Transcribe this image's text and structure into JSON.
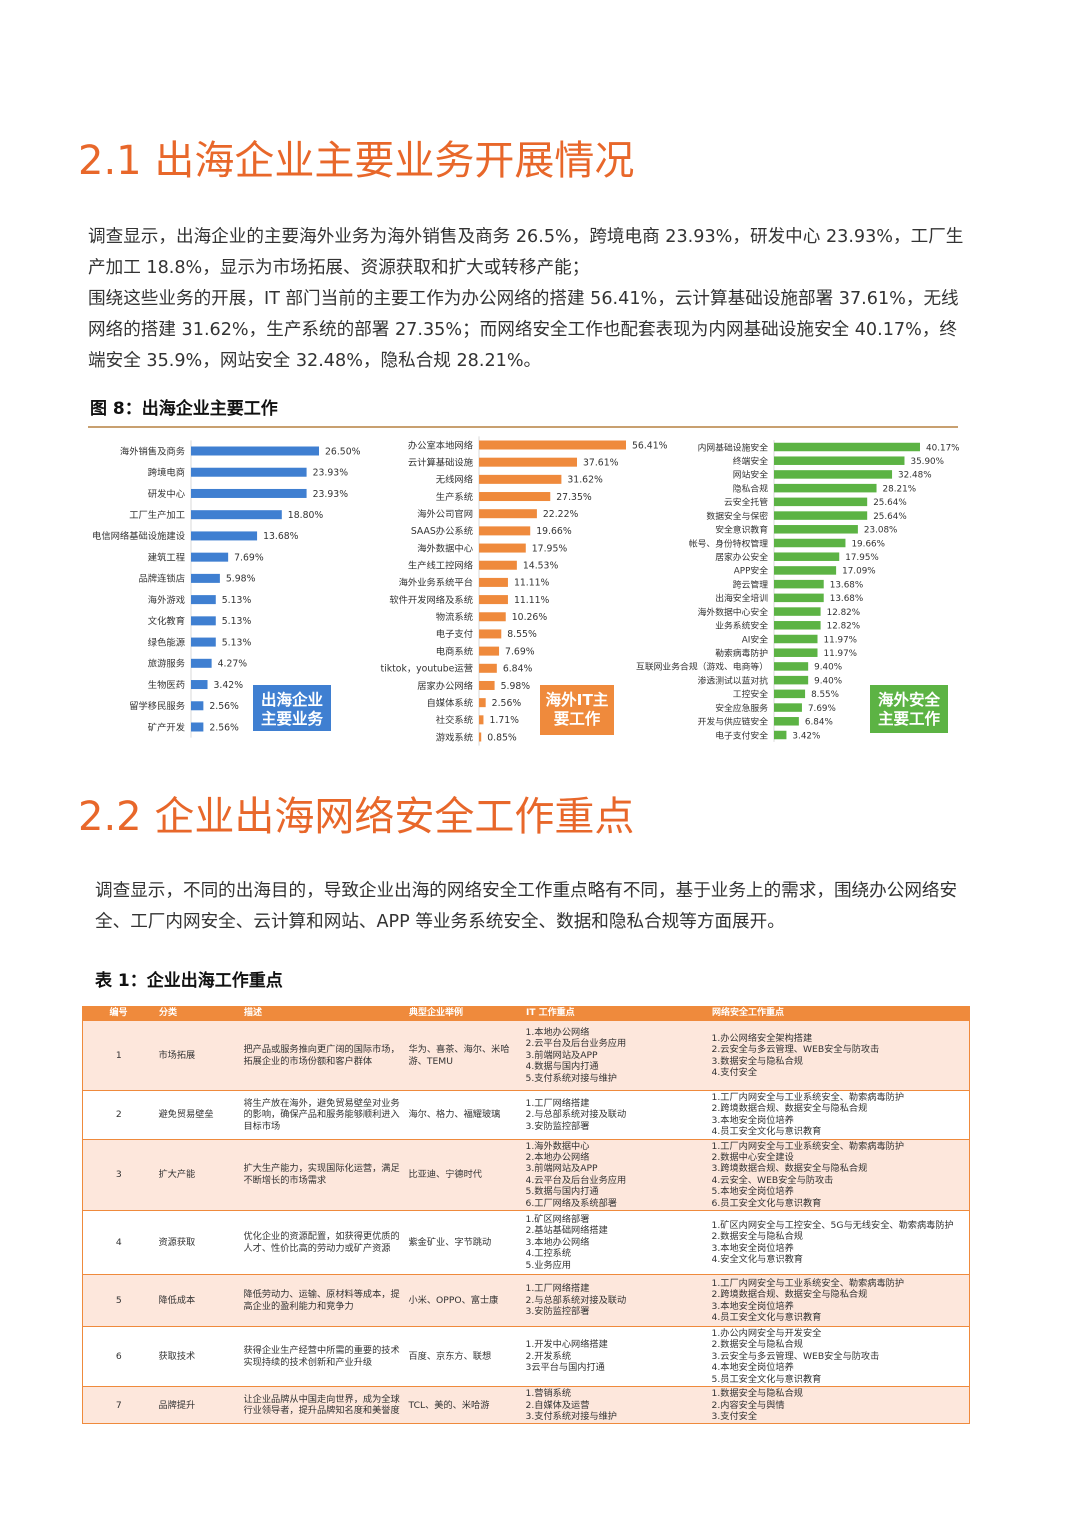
{
  "section1": {
    "heading": "2.1 出海企业主要业务开展情况",
    "paragraphs": [
      "调查显示，出海企业的主要海外业务为海外销售及商务 26.5%，跨境电商 23.93%，研发中心 23.93%，工厂生产加工 18.8%，显示为市场拓展、资源获取和扩大或转移产能；",
      "围绕这些业务的开展，IT 部门当前的主要工作为办公网络的搭建 56.41%，云计算基础设施部署 37.61%，无线网络的搭建 31.62%，生产系统的部署 27.35%；而网络安全工作也配套表现为内网基础设施安全 40.17%，终端安全 35.9%，网站安全 32.48%，隐私合规 28.21%。"
    ],
    "figure_title": "图 8：出海企业主要工作"
  },
  "chart_data": [
    {
      "type": "bar",
      "orientation": "horizontal",
      "badge": "出海企业\n主要业务",
      "color": "#3f7fd1",
      "badge_color": "#3f7fd1",
      "xlim": [
        0,
        30
      ],
      "categories": [
        "海外销售及商务",
        "跨境电商",
        "研发中心",
        "工厂生产加工",
        "电信网络基础设施建设",
        "建筑工程",
        "品牌连锁店",
        "海外游戏",
        "文化教育",
        "绿色能源",
        "旅游服务",
        "生物医药",
        "留学移民服务",
        "矿产开发"
      ],
      "values": [
        26.5,
        23.93,
        23.93,
        18.8,
        13.68,
        7.69,
        5.98,
        5.13,
        5.13,
        5.13,
        4.27,
        3.42,
        2.56,
        2.56
      ],
      "labels": [
        "26.50%",
        "23.93%",
        "23.93%",
        "18.80%",
        "13.68%",
        "7.69%",
        "5.98%",
        "5.13%",
        "5.13%",
        "5.13%",
        "4.27%",
        "3.42%",
        "2.56%",
        "2.56%"
      ]
    },
    {
      "type": "bar",
      "orientation": "horizontal",
      "badge": "海外IT主\n要工作",
      "color": "#ef8a3c",
      "badge_color": "#ef8a3c",
      "xlim": [
        0,
        60
      ],
      "categories": [
        "办公室本地网络",
        "云计算基础设施",
        "无线网络",
        "生产系统",
        "海外公司官网",
        "SAAS办公系统",
        "海外数据中心",
        "生产线工控网络",
        "海外业务系统平台",
        "软件开发网络及系统",
        "物流系统",
        "电子支付",
        "电商系统",
        "tiktok，youtube运营",
        "居家办公网络",
        "自媒体系统",
        "社交系统",
        "游戏系统"
      ],
      "values": [
        56.41,
        37.61,
        31.62,
        27.35,
        22.22,
        19.66,
        17.95,
        14.53,
        11.11,
        11.11,
        10.26,
        8.55,
        7.69,
        6.84,
        5.98,
        2.56,
        1.71,
        0.85
      ],
      "labels": [
        "56.41%",
        "37.61%",
        "31.62%",
        "27.35%",
        "22.22%",
        "19.66%",
        "17.95%",
        "14.53%",
        "11.11%",
        "11.11%",
        "10.26%",
        "8.55%",
        "7.69%",
        "6.84%",
        "5.98%",
        "2.56%",
        "1.71%",
        "0.85%"
      ]
    },
    {
      "type": "bar",
      "orientation": "horizontal",
      "badge": "海外安全\n主要工作",
      "color": "#5cb344",
      "badge_color": "#5cb344",
      "xlim": [
        0,
        45
      ],
      "categories": [
        "内网基础设施安全",
        "终端安全",
        "网站安全",
        "隐私合规",
        "云安全托管",
        "数据安全与保密",
        "安全意识教育",
        "帐号、身份特权管理",
        "居家办公安全",
        "APP安全",
        "跨云管理",
        "出海安全培训",
        "海外数据中心安全",
        "业务系统安全",
        "AI安全",
        "勒索病毒防护",
        "互联网业务合规（游戏、电商等）",
        "渗透测试以蓝对抗",
        "工控安全",
        "安全应急服务",
        "开发与供应链安全",
        "电子支付安全"
      ],
      "values": [
        40.17,
        35.9,
        32.48,
        28.21,
        25.64,
        25.64,
        23.08,
        19.66,
        17.95,
        17.09,
        13.68,
        13.68,
        12.82,
        12.82,
        11.97,
        11.97,
        9.4,
        9.4,
        8.55,
        7.69,
        6.84,
        3.42
      ],
      "labels": [
        "40.17%",
        "35.90%",
        "32.48%",
        "28.21%",
        "25.64%",
        "25.64%",
        "23.08%",
        "19.66%",
        "17.95%",
        "17.09%",
        "13.68%",
        "13.68%",
        "12.82%",
        "12.82%",
        "11.97%",
        "11.97%",
        "9.40%",
        "9.40%",
        "8.55%",
        "7.69%",
        "6.84%",
        "3.42%"
      ]
    }
  ],
  "section2": {
    "heading": "2.2 企业出海网络安全工作重点",
    "paragraph": "调查显示，不同的出海目的，导致企业出海的网络安全工作重点略有不同，基于业务上的需求，围绕办公网络安全、工厂内网安全、云计算和网站、APP 等业务系统安全、数据和隐私合规等方面展开。",
    "table_title": "表 1：企业出海工作重点"
  },
  "table": {
    "headers": [
      "编号",
      "分类",
      "描述",
      "典型企业举例",
      "IT 工作重点",
      "网络安全工作重点"
    ],
    "rows": [
      {
        "no": "1",
        "category": "市场拓展",
        "desc": "把产品或服务推向更广阔的国际市场，拓展企业的市场份额和客户群体",
        "examples": "华为、喜茶、海尔、米哈游、TEMU",
        "it": [
          "1.本地办公网络",
          "2.云平台及后台业务应用",
          "3.前端网站及APP",
          "4.数据与国内打通",
          "5.支付系统对接与维护"
        ],
        "sec": [
          "1.办公网络安全架构搭建",
          "2.云安全与多云管理、WEB安全与防攻击",
          "3.数据安全与隐私合规",
          "4.支付安全"
        ]
      },
      {
        "no": "2",
        "category": "避免贸易壁垒",
        "desc": "将生产放在海外，避免贸易壁垒对业务的影响，确保产品和服务能够顺利进入目标市场",
        "examples": "海尔、格力、福耀玻璃",
        "it": [
          "1.工厂网络搭建",
          "2.与总部系统对接及联动",
          "3.安防监控部署"
        ],
        "sec": [
          "1.工厂内网安全与工业系统安全、勒索病毒防护",
          "2.跨境数据合规、数据安全与隐私合规",
          "3.本地安全岗位培养",
          "4.员工安全文化与意识教育"
        ]
      },
      {
        "no": "3",
        "category": "扩大产能",
        "desc": "扩大生产能力，实现国际化运营，满足不断增长的市场需求",
        "examples": "比亚迪、宁德时代",
        "it": [
          "1.海外数据中心",
          "2.本地办公网络",
          "3.前端网站及APP",
          "4.云平台及后台业务应用",
          "5.数据与国内打通",
          "6.工厂网络及系统部署"
        ],
        "sec": [
          "1.工厂内网安全与工业系统安全、勒索病毒防护",
          "2.数据中心安全建设",
          "3.跨境数据合规、数据安全与隐私合规",
          "4.云安全、WEB安全与防攻击",
          "5.本地安全岗位培养",
          "6.员工安全文化与意识教育"
        ]
      },
      {
        "no": "4",
        "category": "资源获取",
        "desc": "优化企业的资源配置，如获得更优质的人才、性价比高的劳动力或矿产资源",
        "examples": "紫金矿业、字节跳动",
        "it": [
          "1.矿区网络部署",
          "2.基站基础网络搭建",
          "3.本地办公网络",
          "4.工控系统",
          "5.业务应用"
        ],
        "sec": [
          "1.矿区内网安全与工控安全、5G与无线安全、勒索病毒防护",
          "2.数据安全与隐私合规",
          "3.本地安全岗位培养",
          "4.安全文化与意识教育"
        ]
      },
      {
        "no": "5",
        "category": "降低成本",
        "desc": "降低劳动力、运输、原材料等成本，提高企业的盈利能力和竞争力",
        "examples": "小米、OPPO、富士康",
        "it": [
          "1.工厂网络搭建",
          "2.与总部系统对接及联动",
          "3.安防监控部署"
        ],
        "sec": [
          "1.工厂内网安全与工业系统安全、勒索病毒防护",
          "2.跨境数据合规、数据安全与隐私合规",
          "3.本地安全岗位培养",
          "4.员工安全文化与意识教育"
        ]
      },
      {
        "no": "6",
        "category": "获取技术",
        "desc": "获得企业生产经营中所需的重要的技术实现持续的技术创新和产业升级",
        "examples": "百度、京东方、联想",
        "it": [
          "1.开发中心网络搭建",
          "2.开发系统",
          "3云平台与国内打通"
        ],
        "sec": [
          "1.办公内网安全与开发安全",
          "2.数据安全与隐私合规",
          "3.云安全与多云管理、WEB安全与防攻击",
          "4.本地安全岗位培养",
          "5.员工安全文化与意识教育"
        ]
      },
      {
        "no": "7",
        "category": "品牌提升",
        "desc": "让企业品牌从中国走向世界，成为全球行业领导者，提升品牌知名度和美誉度",
        "examples": "TCL、美的、米哈游",
        "it": [
          "1.营销系统",
          "2.自媒体及运营",
          "3.支付系统对接与维护"
        ],
        "sec": [
          "1.数据安全与隐私合规",
          "2.内容安全与舆情",
          "3.支付安全"
        ]
      }
    ]
  }
}
